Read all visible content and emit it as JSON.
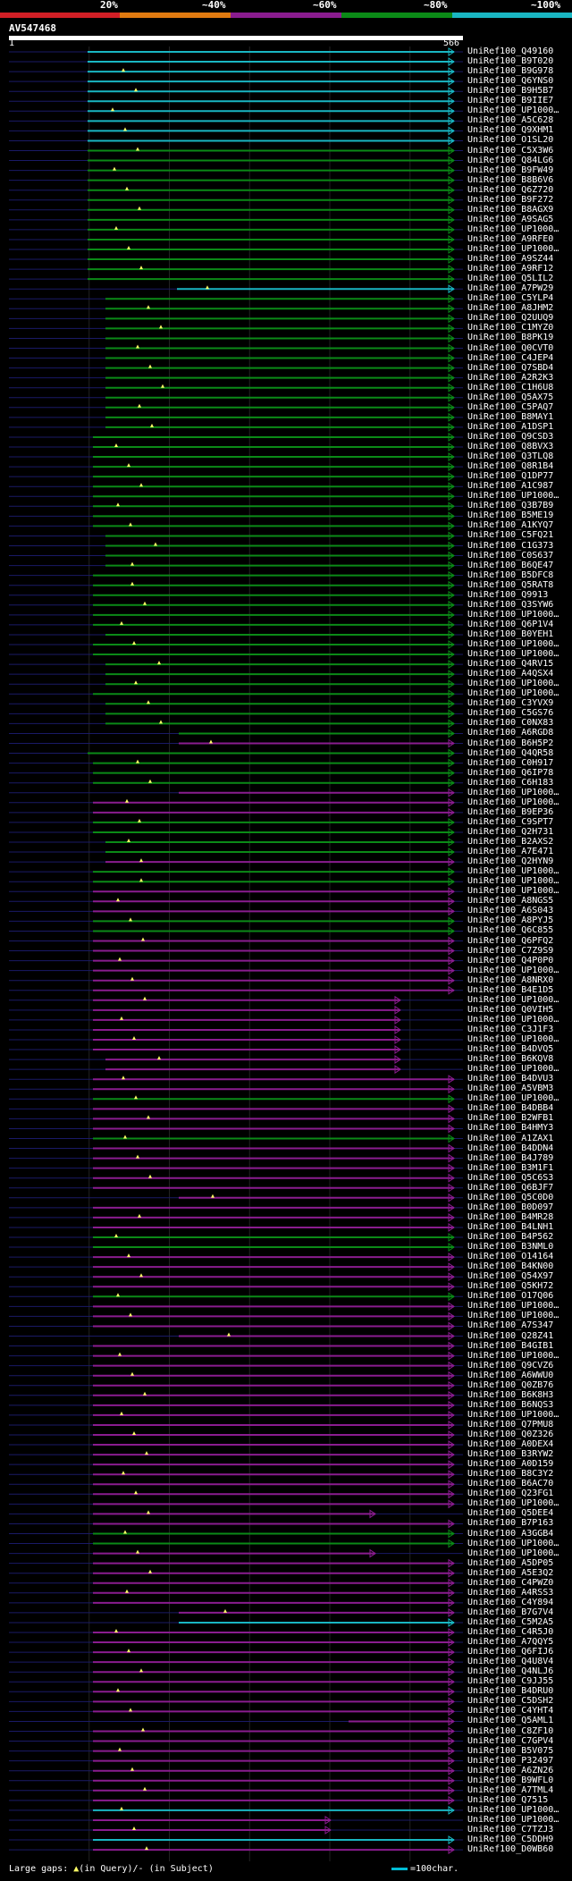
{
  "scale": {
    "labels": [
      "20%",
      "~40%",
      "~60%",
      "~80%",
      "~100%"
    ],
    "colors": [
      "#d11f26",
      "#e07a10",
      "#8a1c8f",
      "#0b8a17",
      "#19b6c2"
    ]
  },
  "query": {
    "title": "AV547468",
    "start_label": "1",
    "end_label": "566",
    "length": 566
  },
  "legend": {
    "gaps_label": "Large gaps:",
    "in_query": "(in Query)/",
    "dash": "-",
    "in_subject": "(in Subject)",
    "scale_label": "=100char."
  },
  "hits": [
    "UniRef100_Q49160",
    "UniRef100_B9T020",
    "UniRef100_B9G978",
    "UniRef100_Q6YNS0",
    "UniRef100_B9H5B7",
    "UniRef100_B9IIE7",
    "UniRef100_UP1000…",
    "UniRef100_A5C628",
    "UniRef100_Q9XHM1",
    "UniRef100_O1SL20",
    "UniRef100_C5X3W6",
    "UniRef100_Q84LG6",
    "UniRef100_B9FW49",
    "UniRef100_B8B6V6",
    "UniRef100_Q6Z720",
    "UniRef100_B9F272",
    "UniRef100_B8AGX9",
    "UniRef100_A9SAG5",
    "UniRef100_UP1000…",
    "UniRef100_A9RFE0",
    "UniRef100_UP1000…",
    "UniRef100_A9SZ44",
    "UniRef100_A9RF12",
    "UniRef100_Q5LIL2",
    "UniRef100_A7PW29",
    "UniRef100_C5YLP4",
    "UniRef100_A8JHM2",
    "UniRef100_Q2UUQ9",
    "UniRef100_C1MYZ0",
    "UniRef100_B8PK19",
    "UniRef100_Q0CVT0",
    "UniRef100_C4JEP4",
    "UniRef100_Q7SBD4",
    "UniRef100_A2R2K3",
    "UniRef100_C1H6U8",
    "UniRef100_Q5AX75",
    "UniRef100_C5PAQ7",
    "UniRef100_B8MAY1",
    "UniRef100_A1DSP1",
    "UniRef100_Q9CSD3",
    "UniRef100_Q8BVX3",
    "UniRef100_Q3TLQ8",
    "UniRef100_Q8R1B4",
    "UniRef100_Q1DP77",
    "UniRef100_A1C987",
    "UniRef100_UP1000…",
    "UniRef100_Q3B7B9",
    "UniRef100_B5ME19",
    "UniRef100_A1KYQ7",
    "UniRef100_C5FQ21",
    "UniRef100_C1G373",
    "UniRef100_C0S637",
    "UniRef100_B6QE47",
    "UniRef100_B5DFC8",
    "UniRef100_Q5RAT8",
    "UniRef100_Q9913",
    "UniRef100_Q3SYW6",
    "UniRef100_UP1000…",
    "UniRef100_Q6P1V4",
    "UniRef100_B0YEH1",
    "UniRef100_UP1000…",
    "UniRef100_UP1000…",
    "UniRef100_Q4RV15",
    "UniRef100_A4QSX4",
    "UniRef100_UP1000…",
    "UniRef100_UP1000…",
    "UniRef100_C3YVX9",
    "UniRef100_C5GS76",
    "UniRef100_C0NX83",
    "UniRef100_A6RGD8",
    "UniRef100_B6H5P2",
    "UniRef100_Q4QR58",
    "UniRef100_C0H917",
    "UniRef100_Q6IP78",
    "UniRef100_C6H183",
    "UniRef100_UP1000…",
    "UniRef100_UP1000…",
    "UniRef100_B9EP36",
    "UniRef100_C9SPT7",
    "UniRef100_Q2H731",
    "UniRef100_B2AXS2",
    "UniRef100_A7E471",
    "UniRef100_Q2HYN9",
    "UniRef100_UP1000…",
    "UniRef100_UP1000…",
    "UniRef100_UP1000…",
    "UniRef100_A8NGS5",
    "UniRef100_A6S043",
    "UniRef100_A8PYJ5",
    "UniRef100_Q6C855",
    "UniRef100_Q6PFQ2",
    "UniRef100_C7Z9S9",
    "UniRef100_Q4P0P0",
    "UniRef100_UP1000…",
    "UniRef100_A8NRX0",
    "UniRef100_B4E1D5",
    "UniRef100_UP1000…",
    "UniRef100_Q0VIH5",
    "UniRef100_UP1000…",
    "UniRef100_C3J1F3",
    "UniRef100_UP1000…",
    "UniRef100_B4DVQ5",
    "UniRef100_B6KQV8",
    "UniRef100_UP1000…",
    "UniRef100_B4DVU3",
    "UniRef100_A5VBM3",
    "UniRef100_UP1000…",
    "UniRef100_B4DBB4",
    "UniRef100_B2WFB1",
    "UniRef100_B4HMY3",
    "UniRef100_A1ZAX1",
    "UniRef100_B4DDN4",
    "UniRef100_B4J789",
    "UniRef100_B3M1F1",
    "UniRef100_Q5C6S3",
    "UniRef100_Q6BJF7",
    "UniRef100_Q5C0D0",
    "UniRef100_B0D097",
    "UniRef100_B4MR28",
    "UniRef100_B4LNH1",
    "UniRef100_B4P562",
    "UniRef100_B3NML0",
    "UniRef100_O14164",
    "UniRef100_B4KN00",
    "UniRef100_Q54X97",
    "UniRef100_Q5KH72",
    "UniRef100_O17Q06",
    "UniRef100_UP1000…",
    "UniRef100_UP1000…",
    "UniRef100_A7S347",
    "UniRef100_Q28Z41",
    "UniRef100_B4GIB1",
    "UniRef100_UP1000…",
    "UniRef100_Q9CVZ6",
    "UniRef100_A6WWU0",
    "UniRef100_Q0ZB76",
    "UniRef100_B6K8H3",
    "UniRef100_B6NQS3",
    "UniRef100_UP1000…",
    "UniRef100_Q7PMU8",
    "UniRef100_Q0Z326",
    "UniRef100_A0DEX4",
    "UniRef100_B3RYW2",
    "UniRef100_A0D159",
    "UniRef100_B8C3Y2",
    "UniRef100_B6AC70",
    "UniRef100_Q23FG1",
    "UniRef100_UP1000…",
    "UniRef100_Q5DEE4",
    "UniRef100_B7P163",
    "UniRef100_A3GGB4",
    "UniRef100_UP1000…",
    "UniRef100_UP1000…",
    "UniRef100_A5DP05",
    "UniRef100_A5E3Q2",
    "UniRef100_C4PWZ0",
    "UniRef100_A4RSS3",
    "UniRef100_C4Y894",
    "UniRef100_B7G7V4",
    "UniRef100_C5M2A5",
    "UniRef100_C4R5J0",
    "UniRef100_A7QQY5",
    "UniRef100_Q6FIJ6",
    "UniRef100_Q4U8V4",
    "UniRef100_Q4NLJ6",
    "UniRef100_C9JJ55",
    "UniRef100_B4DRU0",
    "UniRef100_C5DSH2",
    "UniRef100_C4YHT4",
    "UniRef100_Q5AML1",
    "UniRef100_C8ZF10",
    "UniRef100_C7GPV4",
    "UniRef100_B5V075",
    "UniRef100_P32497",
    "UniRef100_A6ZN26",
    "UniRef100_B9WFL0",
    "UniRef100_A7TML4",
    "UniRef100_Q7515",
    "UniRef100_UP1000…",
    "UniRef100_UP1000…",
    "UniRef100_C7TZJ3",
    "UniRef100_C5DDH9",
    "UniRef100_D0WB60"
  ]
}
